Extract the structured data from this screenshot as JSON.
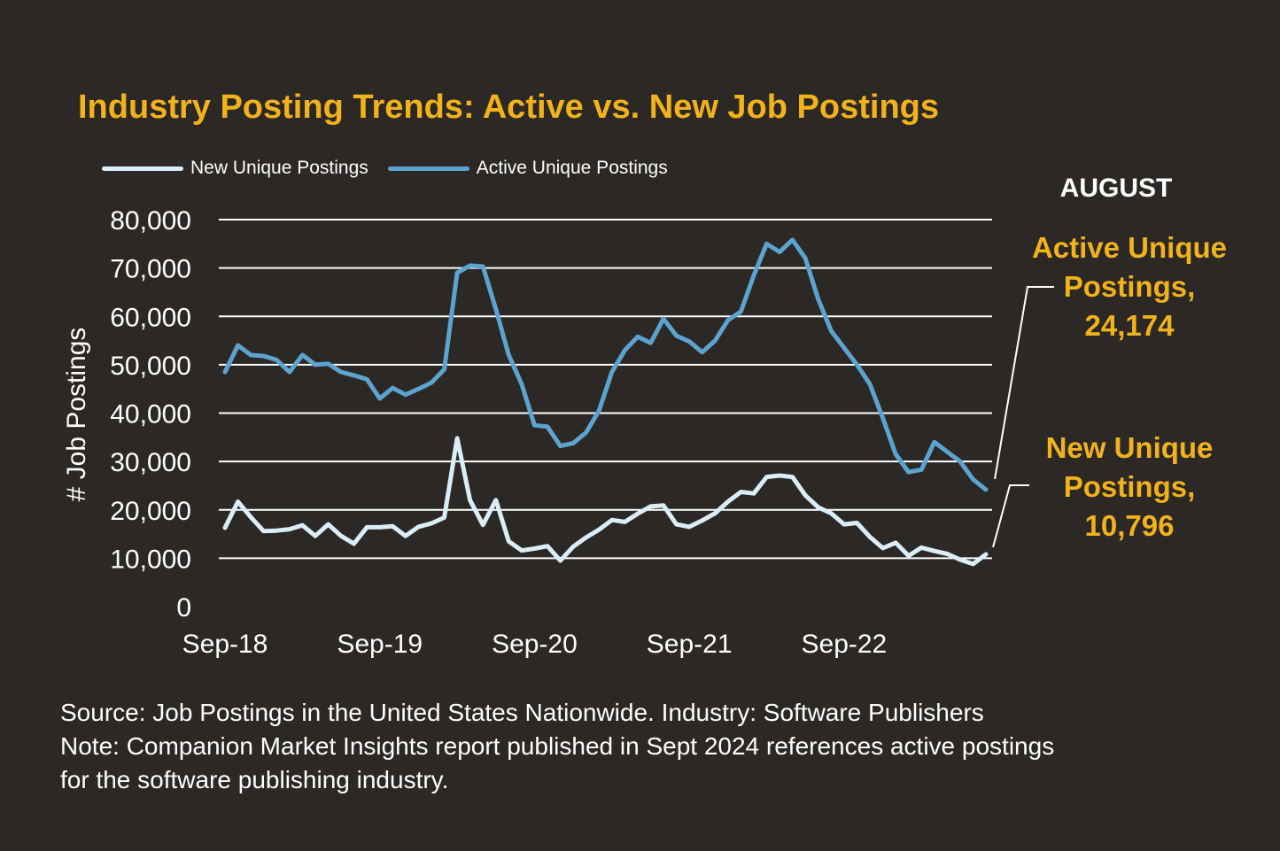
{
  "title": "Industry Posting Trends: Active vs. New Job Postings",
  "colors": {
    "background": "#2b2826",
    "accent": "#f2b21c",
    "new_series": "#dbeef8",
    "active_series": "#5da3cf",
    "gridline": "#ffffff"
  },
  "legend": {
    "new_label": "New Unique Postings",
    "active_label": "Active Unique Postings"
  },
  "month_label": "AUGUST",
  "callouts": {
    "active": {
      "line1": "Active Unique",
      "line2": "Postings,",
      "line3": "24,174"
    },
    "new": {
      "line1": "New Unique",
      "line2": "Postings,",
      "line3": "10,796"
    }
  },
  "source": {
    "line1": "Source: Job Postings in the United States Nationwide. Industry: Software Publishers",
    "line2": "Note: Companion Market Insights report published in Sept 2024 references active postings",
    "line3": "for the software publishing industry."
  },
  "chart_data": {
    "type": "line",
    "ylabel": "# Job Postings",
    "xlabel": "",
    "ylim": [
      0,
      80000
    ],
    "yticks": [
      "80,000",
      "70,000",
      "60,000",
      "50,000",
      "40,000",
      "30,000",
      "20,000",
      "10,000",
      "0"
    ],
    "ytick_values": [
      80000,
      70000,
      60000,
      50000,
      40000,
      30000,
      20000,
      10000,
      0
    ],
    "xtick_labels": [
      "Sep-18",
      "Sep-19",
      "Sep-20",
      "Sep-21",
      "Sep-22"
    ],
    "xtick_indices": [
      0,
      12,
      24,
      36,
      48
    ],
    "grid": true,
    "legend_position": "top-left",
    "x_start": "Sep-18",
    "x_end": "Aug-24",
    "series": [
      {
        "name": "Active Unique Postings",
        "color": "#5da3cf",
        "values": [
          48500,
          54000,
          52000,
          51800,
          51000,
          48500,
          52000,
          50000,
          50200,
          48500,
          47800,
          47000,
          43000,
          45200,
          43800,
          45000,
          46300,
          49000,
          69000,
          70500,
          70300,
          61500,
          52000,
          46000,
          37500,
          37200,
          33200,
          33800,
          36000,
          40500,
          48500,
          53000,
          55800,
          54500,
          59500,
          56000,
          54800,
          52600,
          55000,
          59200,
          61000,
          68500,
          75000,
          73300,
          75800,
          72000,
          63500,
          57000,
          53500,
          50000,
          46000,
          39000,
          31500,
          27800,
          28300,
          34000,
          32000,
          30000,
          26300,
          24174
        ]
      },
      {
        "name": "New Unique Postings",
        "color": "#dbeef8",
        "values": [
          16300,
          21700,
          18500,
          15600,
          15700,
          16000,
          16800,
          14600,
          17000,
          14600,
          13000,
          16400,
          16400,
          16600,
          14600,
          16500,
          17200,
          18400,
          34800,
          22000,
          16900,
          22000,
          13500,
          11600,
          12000,
          12500,
          9500,
          12400,
          14300,
          15900,
          17900,
          17500,
          19200,
          20700,
          20900,
          17000,
          16500,
          17800,
          19300,
          21700,
          23700,
          23400,
          26800,
          27100,
          26800,
          23000,
          20500,
          19300,
          17000,
          17300,
          14400,
          12100,
          13200,
          10500,
          12200,
          11500,
          10900,
          9700,
          8800,
          10796
        ]
      }
    ]
  }
}
